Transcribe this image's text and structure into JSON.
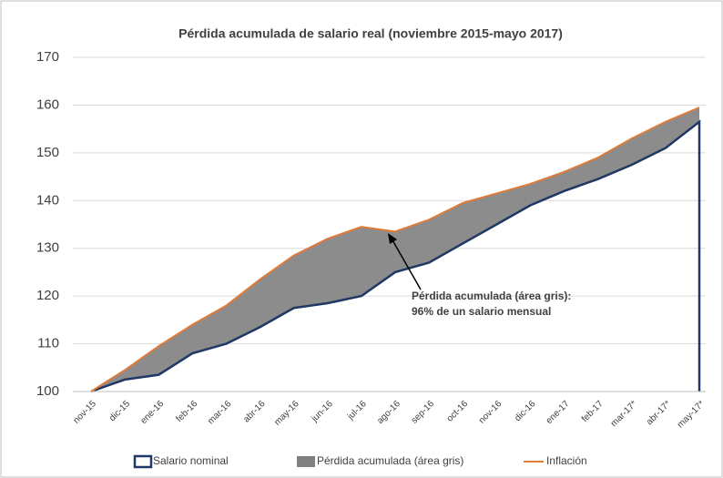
{
  "chart_data": {
    "type": "area-line",
    "title": "Pérdida acumulada de salario real (noviembre 2015-mayo 2017)",
    "categories": [
      "nov-15",
      "dic-15",
      "ene-16",
      "feb-16",
      "mar-16",
      "abr-16",
      "may-16",
      "jun-16",
      "jul-16",
      "ago-16",
      "sep-16",
      "oct-16",
      "nov-16",
      "dic-16",
      "ene-17",
      "feb-17",
      "mar-17*",
      "abr-17*",
      "may-17*"
    ],
    "series": [
      {
        "name": "Salario nominal",
        "color": "#1f3864",
        "values": [
          100,
          102.5,
          103.5,
          108,
          110,
          113.5,
          117.5,
          118.5,
          120,
          125,
          127,
          131,
          135,
          139,
          142,
          144.5,
          147.5,
          151,
          156.5
        ]
      },
      {
        "name": "Pérdida acumulada (área gris)",
        "color": "#808080"
      },
      {
        "name": "Inflación",
        "color": "#e07b39",
        "values": [
          100,
          104.5,
          109.5,
          114,
          118,
          123.5,
          128.5,
          132,
          134.5,
          133.5,
          136,
          139.5,
          141.5,
          143.5,
          146,
          149,
          153,
          156.5,
          159.5
        ]
      }
    ],
    "annotation": [
      "Pérdida acumulada (área gris):",
      "96% de un salario mensual"
    ],
    "ylim": [
      100,
      170
    ],
    "yticks": [
      100,
      110,
      120,
      130,
      140,
      150,
      160,
      170
    ],
    "grid": true
  }
}
